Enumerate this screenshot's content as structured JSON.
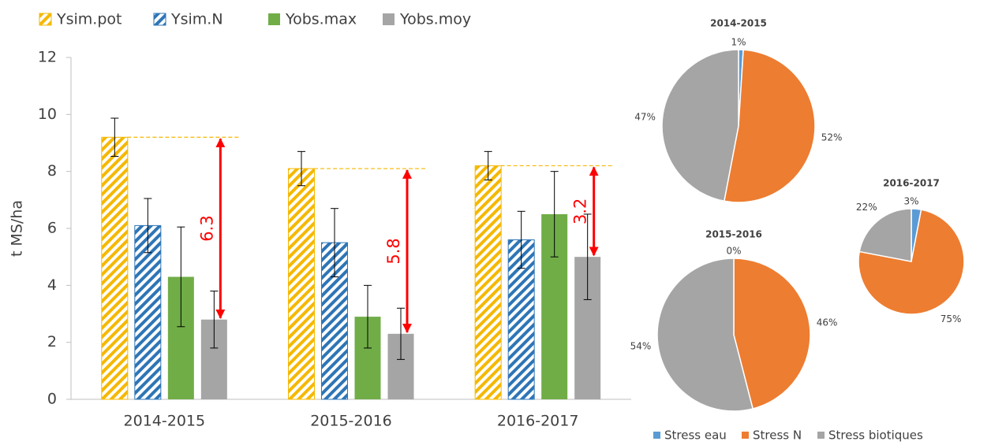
{
  "chart_data": [
    {
      "type": "bar",
      "categories": [
        "2014-2015",
        "2015-2016",
        "2016-2017"
      ],
      "ylabel": "t MS/ha",
      "ylim": [
        0,
        12
      ],
      "yticks": [
        0,
        2,
        4,
        6,
        8,
        10,
        12
      ],
      "series": [
        {
          "name": "Ysim.pot",
          "color": "#f5b800",
          "hatch": true,
          "values": [
            9.2,
            8.1,
            8.2
          ],
          "errors": [
            0.67,
            0.6,
            0.5
          ]
        },
        {
          "name": "Ysim.N",
          "color": "#2e75b6",
          "hatch": true,
          "values": [
            6.1,
            5.5,
            5.6
          ],
          "errors": [
            0.95,
            1.2,
            1.0
          ]
        },
        {
          "name": "Yobs.max",
          "color": "#70ad47",
          "hatch": false,
          "values": [
            4.3,
            2.9,
            6.5
          ],
          "errors": [
            1.75,
            1.1,
            1.5
          ]
        },
        {
          "name": "Yobs.moy",
          "color": "#a5a5a5",
          "hatch": false,
          "values": [
            2.8,
            2.3,
            5.0
          ],
          "errors": [
            1.0,
            0.9,
            1.5
          ]
        }
      ],
      "annotations": [
        "6.3",
        "5.8",
        "3.2"
      ],
      "annotation_color": "#ff0000"
    },
    {
      "type": "pie",
      "categories": [
        "Stress eau",
        "Stress N",
        "Stress biotiques"
      ],
      "colors": [
        "#5b9bd5",
        "#ed7d31",
        "#a5a5a5"
      ],
      "series": [
        {
          "name": "2014-2015",
          "values": [
            1,
            52,
            47
          ],
          "value_labels": [
            "1%",
            "52%",
            "47%"
          ]
        },
        {
          "name": "2015-2016",
          "values": [
            0,
            46,
            54
          ],
          "value_labels": [
            "0%",
            "46%",
            "54%"
          ]
        },
        {
          "name": "2016-2017",
          "values": [
            3,
            75,
            22
          ],
          "value_labels": [
            "3%",
            "75%",
            "22%"
          ]
        }
      ]
    }
  ]
}
